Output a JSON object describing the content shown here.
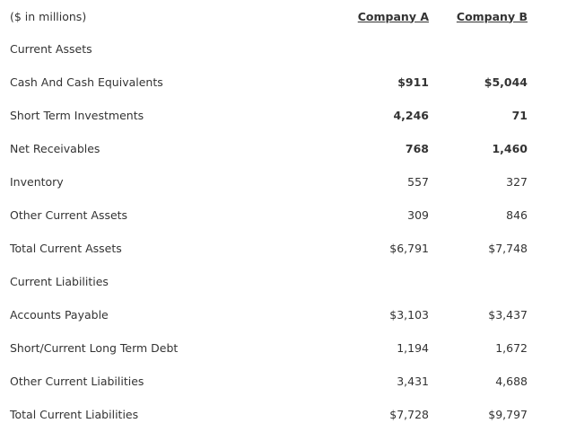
{
  "table": {
    "unit_note": "($ in millions)",
    "columns": [
      "Company A",
      "Company B"
    ],
    "rows": [
      {
        "label": "Current Assets",
        "a": "",
        "b": "",
        "bold": false
      },
      {
        "label": "Cash And Cash Equivalents",
        "a": "$911",
        "b": "$5,044",
        "bold": true
      },
      {
        "label": "Short Term Investments",
        "a": "4,246",
        "b": "71",
        "bold": true
      },
      {
        "label": "Net Receivables",
        "a": "768",
        "b": "1,460",
        "bold": true
      },
      {
        "label": "Inventory",
        "a": "557",
        "b": "327",
        "bold": false
      },
      {
        "label": "Other Current Assets",
        "a": "309",
        "b": "846",
        "bold": false
      },
      {
        "label": "Total Current Assets",
        "a": "$6,791",
        "b": "$7,748",
        "bold": false
      },
      {
        "label": "Current Liabilities",
        "a": "",
        "b": "",
        "bold": false
      },
      {
        "label": "Accounts Payable",
        "a": "$3,103",
        "b": "$3,437",
        "bold": false
      },
      {
        "label": "Short/Current Long Term Debt",
        "a": "1,194",
        "b": "1,672",
        "bold": false
      },
      {
        "label": "Other Current Liabilities",
        "a": "3,431",
        "b": "4,688",
        "bold": false
      },
      {
        "label": "Total Current Liabilities",
        "a": "$7,728",
        "b": "$9,797",
        "bold": false
      }
    ]
  }
}
